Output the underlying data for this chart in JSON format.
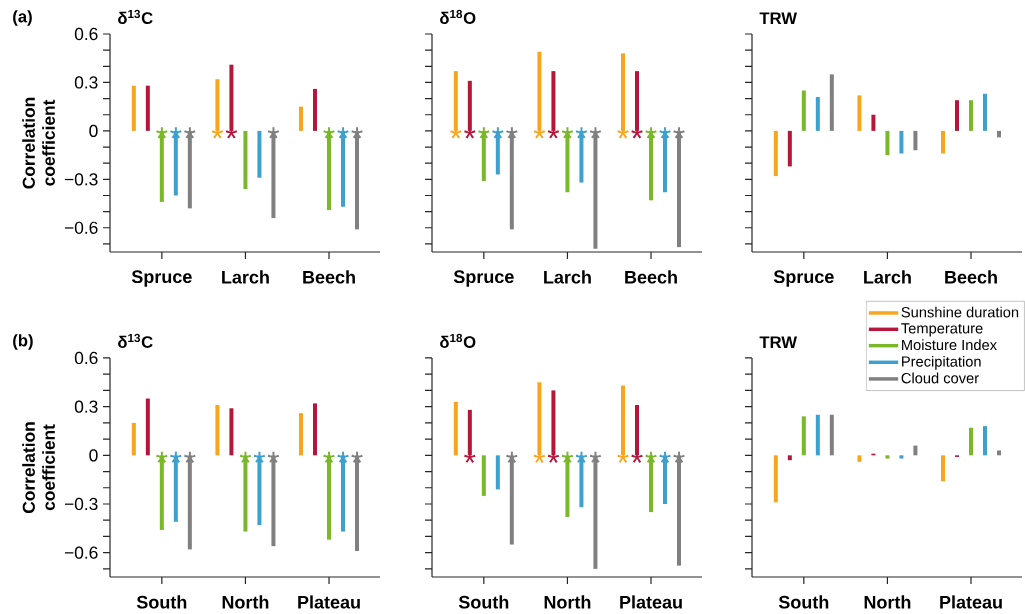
{
  "chart_data": [
    {
      "type": "bar",
      "title": "δ$^{13}$C",
      "ylabel": "Correlation coefficient",
      "annotations": [
        "(a)"
      ],
      "categories": [
        "Spruce",
        "Larch",
        "Beech"
      ],
      "series": [
        {
          "color": "#f9a51b",
          "values": [
            0.28,
            0.32,
            0.15
          ],
          "value_labels": [
            null,
            "*",
            null
          ]
        },
        {
          "color": "#b5163b",
          "values": [
            0.28,
            0.41,
            0.26
          ],
          "value_labels": [
            null,
            "*",
            null
          ]
        },
        {
          "color": "#7ab829",
          "values": [
            -0.44,
            -0.36,
            -0.49
          ],
          "value_labels": [
            "*",
            null,
            "*"
          ]
        },
        {
          "color": "#3ea0cf",
          "values": [
            -0.4,
            -0.29,
            -0.47
          ],
          "value_labels": [
            "*",
            null,
            "*"
          ]
        },
        {
          "color": "#808080",
          "values": [
            -0.48,
            -0.54,
            -0.61
          ],
          "value_labels": [
            "*",
            "*",
            "*"
          ]
        }
      ],
      "ylim": [
        -0.75,
        0.6
      ],
      "yticks": [
        0.6,
        {
          "value": 0.5,
          "label": null
        },
        {
          "value": 0.4,
          "label": null
        },
        0.3,
        {
          "value": 0.2,
          "label": null
        },
        {
          "value": 0.1,
          "label": null
        },
        0,
        {
          "value": -0.1,
          "label": null
        },
        {
          "value": -0.2,
          "label": null
        },
        {
          "value": -0.3,
          "label": "−0.3"
        },
        {
          "value": -0.4,
          "label": null
        },
        {
          "value": -0.5,
          "label": null
        },
        {
          "value": -0.6,
          "label": "−0.6"
        },
        {
          "value": -0.7,
          "label": null
        }
      ]
    },
    {
      "type": "bar",
      "title": "δ$^{18}$O",
      "categories": [
        "Spruce",
        "Larch",
        "Beech"
      ],
      "tick_labels": "x",
      "series": [
        {
          "color": "#f9a51b",
          "values": [
            0.37,
            0.49,
            0.48
          ],
          "value_labels": [
            "*",
            "*",
            "*"
          ]
        },
        {
          "color": "#b5163b",
          "values": [
            0.31,
            0.37,
            0.37
          ],
          "value_labels": [
            "*",
            "*",
            "*"
          ]
        },
        {
          "color": "#7ab829",
          "values": [
            -0.31,
            -0.38,
            -0.43
          ],
          "value_labels": [
            "*",
            "*",
            "*"
          ]
        },
        {
          "color": "#3ea0cf",
          "values": [
            -0.27,
            -0.32,
            -0.38
          ],
          "value_labels": [
            "*",
            "*",
            "*"
          ]
        },
        {
          "color": "#808080",
          "values": [
            -0.61,
            -0.73,
            -0.72
          ],
          "value_labels": [
            "*",
            "*",
            "*"
          ]
        }
      ],
      "ylim": [
        -0.75,
        0.6
      ],
      "yticks": [
        {
          "value": 0.6,
          "label": null
        },
        {
          "value": 0.5,
          "label": null
        },
        {
          "value": 0.4,
          "label": null
        },
        {
          "value": 0.3,
          "label": null
        },
        {
          "value": 0.2,
          "label": null
        },
        {
          "value": 0.1,
          "label": null
        },
        {
          "value": 0,
          "label": null
        },
        {
          "value": -0.1,
          "label": null
        },
        {
          "value": -0.2,
          "label": null
        },
        {
          "value": -0.3,
          "label": null
        },
        {
          "value": -0.4,
          "label": null
        },
        {
          "value": -0.5,
          "label": null
        },
        {
          "value": -0.6,
          "label": null
        },
        {
          "value": -0.7,
          "label": null
        }
      ]
    },
    {
      "type": "bar",
      "title": "TRW",
      "categories": [
        "Spruce",
        "Larch",
        "Beech"
      ],
      "tick_labels": "x",
      "series": [
        {
          "color": "#f9a51b",
          "values": [
            -0.28,
            0.22,
            -0.14
          ]
        },
        {
          "color": "#b5163b",
          "values": [
            -0.22,
            0.1,
            0.19
          ]
        },
        {
          "color": "#7ab829",
          "values": [
            0.25,
            -0.15,
            0.19
          ]
        },
        {
          "color": "#3ea0cf",
          "values": [
            0.21,
            -0.14,
            0.23
          ]
        },
        {
          "color": "#808080",
          "values": [
            0.35,
            -0.12,
            -0.04
          ]
        }
      ],
      "ylim": [
        -0.75,
        0.6
      ],
      "yticks": [
        {
          "value": 0.6,
          "label": null
        },
        {
          "value": 0.5,
          "label": null
        },
        {
          "value": 0.4,
          "label": null
        },
        {
          "value": 0.3,
          "label": null
        },
        {
          "value": 0.2,
          "label": null
        },
        {
          "value": 0.1,
          "label": null
        },
        {
          "value": 0,
          "label": null
        },
        {
          "value": -0.1,
          "label": null
        },
        {
          "value": -0.2,
          "label": null
        },
        {
          "value": -0.3,
          "label": null
        },
        {
          "value": -0.4,
          "label": null
        },
        {
          "value": -0.5,
          "label": null
        },
        {
          "value": -0.6,
          "label": null
        },
        {
          "value": -0.7,
          "label": null
        }
      ]
    },
    {
      "type": "bar",
      "title": "δ$^{13}$C",
      "ylabel": "Correlation coefficient",
      "annotations": [
        "(b)"
      ],
      "categories": [
        "South",
        "North",
        "Plateau"
      ],
      "series": [
        {
          "color": "#f9a51b",
          "values": [
            0.2,
            0.31,
            0.26
          ]
        },
        {
          "color": "#b5163b",
          "values": [
            0.35,
            0.29,
            0.32
          ]
        },
        {
          "color": "#7ab829",
          "values": [
            -0.46,
            -0.47,
            -0.52
          ],
          "value_labels": [
            "*",
            "*",
            "*"
          ]
        },
        {
          "color": "#3ea0cf",
          "values": [
            -0.41,
            -0.43,
            -0.47
          ],
          "value_labels": [
            "*",
            "*",
            "*"
          ]
        },
        {
          "color": "#808080",
          "values": [
            -0.58,
            -0.56,
            -0.59
          ],
          "value_labels": [
            "*",
            "*",
            "*"
          ]
        }
      ],
      "ylim": [
        -0.75,
        0.6
      ],
      "yticks": [
        0.6,
        {
          "value": 0.5,
          "label": null
        },
        {
          "value": 0.4,
          "label": null
        },
        0.3,
        {
          "value": 0.2,
          "label": null
        },
        {
          "value": 0.1,
          "label": null
        },
        0,
        {
          "value": -0.1,
          "label": null
        },
        {
          "value": -0.2,
          "label": null
        },
        {
          "value": -0.3,
          "label": "−0.3"
        },
        {
          "value": -0.4,
          "label": null
        },
        {
          "value": -0.5,
          "label": null
        },
        {
          "value": -0.6,
          "label": "−0.6"
        },
        {
          "value": -0.7,
          "label": null
        }
      ]
    },
    {
      "type": "bar",
      "title": "δ$^{18}$O",
      "categories": [
        "South",
        "North",
        "Plateau"
      ],
      "tick_labels": "x",
      "series": [
        {
          "color": "#f9a51b",
          "values": [
            0.33,
            0.45,
            0.43
          ],
          "value_labels": [
            null,
            "*",
            "*"
          ]
        },
        {
          "color": "#b5163b",
          "values": [
            0.28,
            0.4,
            0.31
          ],
          "value_labels": [
            "*",
            "*",
            "*"
          ]
        },
        {
          "color": "#7ab829",
          "values": [
            -0.25,
            -0.38,
            -0.35
          ],
          "value_labels": [
            null,
            "*",
            "*"
          ]
        },
        {
          "color": "#3ea0cf",
          "values": [
            -0.21,
            -0.32,
            -0.3
          ],
          "value_labels": [
            null,
            "*",
            "*"
          ]
        },
        {
          "color": "#808080",
          "values": [
            -0.55,
            -0.7,
            -0.68
          ],
          "value_labels": [
            "*",
            "*",
            "*"
          ]
        }
      ],
      "ylim": [
        -0.75,
        0.6
      ],
      "yticks": [
        {
          "value": 0.6,
          "label": null
        },
        {
          "value": 0.5,
          "label": null
        },
        {
          "value": 0.4,
          "label": null
        },
        {
          "value": 0.3,
          "label": null
        },
        {
          "value": 0.2,
          "label": null
        },
        {
          "value": 0.1,
          "label": null
        },
        {
          "value": 0,
          "label": null
        },
        {
          "value": -0.1,
          "label": null
        },
        {
          "value": -0.2,
          "label": null
        },
        {
          "value": -0.3,
          "label": null
        },
        {
          "value": -0.4,
          "label": null
        },
        {
          "value": -0.5,
          "label": null
        },
        {
          "value": -0.6,
          "label": null
        },
        {
          "value": -0.7,
          "label": null
        }
      ]
    },
    {
      "type": "bar",
      "title": "TRW",
      "categories": [
        "South",
        "North",
        "Plateau"
      ],
      "tick_labels": "x",
      "legend": "top right",
      "series": [
        {
          "name": "Sunshine duration",
          "color": "#f9a51b",
          "values": [
            -0.29,
            -0.04,
            -0.16
          ]
        },
        {
          "name": "Temperature",
          "color": "#b5163b",
          "values": [
            -0.03,
            0.01,
            -0.01
          ]
        },
        {
          "name": "Moisture Index",
          "color": "#7ab829",
          "values": [
            0.24,
            -0.02,
            0.17
          ]
        },
        {
          "name": "Precipitation",
          "color": "#3ea0cf",
          "values": [
            0.25,
            -0.02,
            0.18
          ]
        },
        {
          "name": "Cloud cover",
          "color": "#808080",
          "values": [
            0.25,
            0.06,
            0.03
          ]
        }
      ],
      "ylim": [
        -0.75,
        0.6
      ],
      "yticks": [
        {
          "value": 0.6,
          "label": null
        },
        {
          "value": 0.5,
          "label": null
        },
        {
          "value": 0.4,
          "label": null
        },
        {
          "value": 0.3,
          "label": null
        },
        {
          "value": 0.2,
          "label": null
        },
        {
          "value": 0.1,
          "label": null
        },
        {
          "value": 0,
          "label": null
        },
        {
          "value": -0.1,
          "label": null
        },
        {
          "value": -0.2,
          "label": null
        },
        {
          "value": -0.3,
          "label": null
        },
        {
          "value": -0.4,
          "label": null
        },
        {
          "value": -0.5,
          "label": null
        },
        {
          "value": -0.6,
          "label": null
        },
        {
          "value": -0.7,
          "label": null
        }
      ]
    }
  ]
}
